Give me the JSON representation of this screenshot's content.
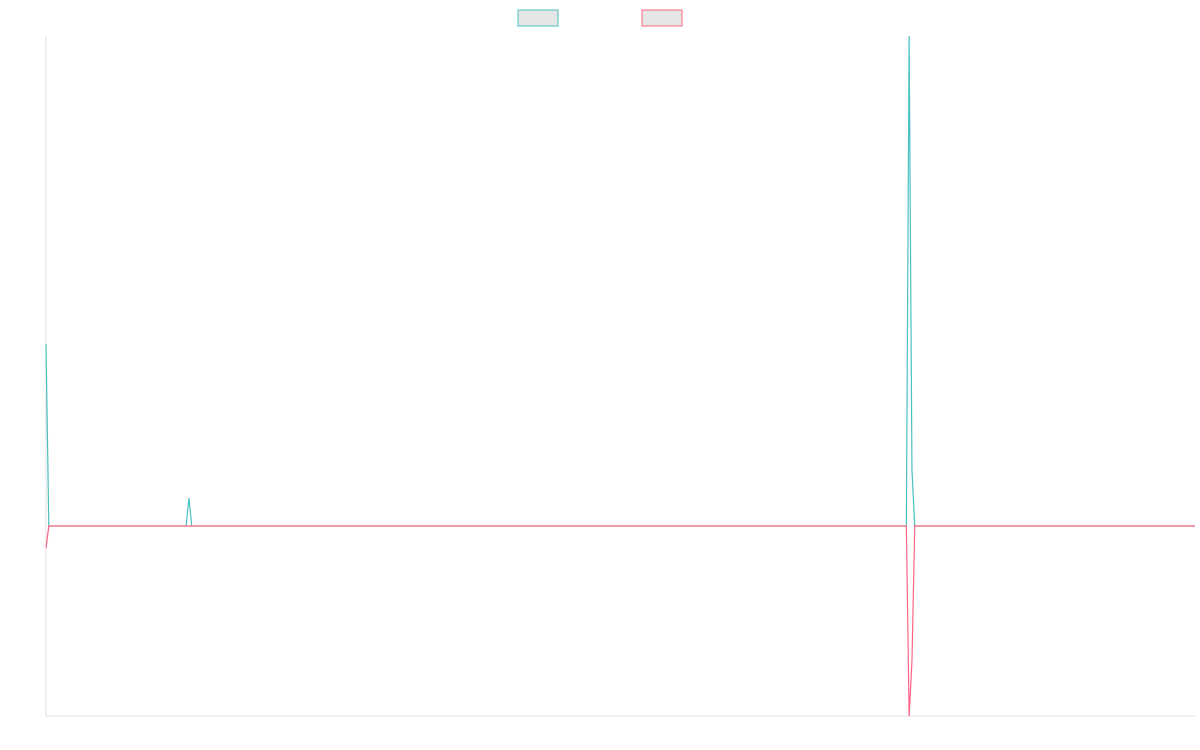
{
  "chart_data": {
    "type": "line",
    "legend": "top",
    "xlim": [
      0,
      410
    ],
    "ylim": [
      -190,
      490
    ],
    "series": [
      {
        "color": "#4bc0c0",
        "x": [
          0,
          1,
          50,
          51,
          52,
          307,
          308,
          309,
          310,
          410
        ],
        "values": [
          182,
          0,
          0,
          28,
          0,
          0,
          490,
          56,
          0,
          0
        ]
      },
      {
        "color": "#ff6384",
        "x": [
          0,
          1,
          307,
          308,
          309,
          310,
          410
        ],
        "values": [
          -22,
          0,
          0,
          -190,
          -135,
          0,
          0
        ]
      }
    ]
  }
}
